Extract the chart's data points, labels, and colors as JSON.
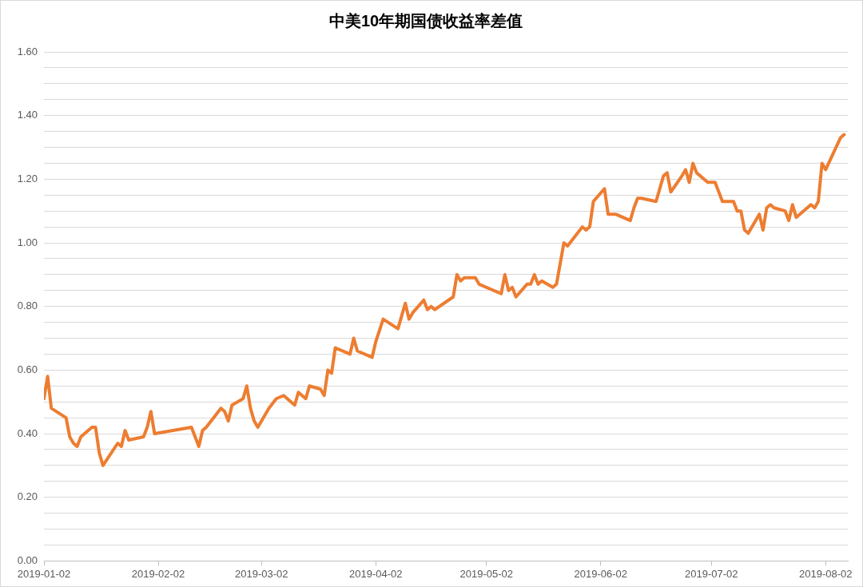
{
  "chart_data": {
    "type": "line",
    "title": "中美10年期国债收益率差值",
    "x": [
      "2019-01-02",
      "2019-01-03",
      "2019-01-04",
      "2019-01-08",
      "2019-01-09",
      "2019-01-10",
      "2019-01-11",
      "2019-01-12",
      "2019-01-15",
      "2019-01-16",
      "2019-01-17",
      "2019-01-18",
      "2019-01-22",
      "2019-01-23",
      "2019-01-24",
      "2019-01-25",
      "2019-01-29",
      "2019-01-30",
      "2019-01-31",
      "2019-02-01",
      "2019-02-11",
      "2019-02-12",
      "2019-02-13",
      "2019-02-14",
      "2019-02-15",
      "2019-02-19",
      "2019-02-20",
      "2019-02-21",
      "2019-02-22",
      "2019-02-25",
      "2019-02-26",
      "2019-02-27",
      "2019-02-28",
      "2019-03-01",
      "2019-03-04",
      "2019-03-06",
      "2019-03-08",
      "2019-03-11",
      "2019-03-12",
      "2019-03-14",
      "2019-03-15",
      "2019-03-18",
      "2019-03-19",
      "2019-03-20",
      "2019-03-21",
      "2019-03-22",
      "2019-03-26",
      "2019-03-27",
      "2019-03-28",
      "2019-04-01",
      "2019-04-02",
      "2019-04-04",
      "2019-04-08",
      "2019-04-09",
      "2019-04-10",
      "2019-04-11",
      "2019-04-12",
      "2019-04-15",
      "2019-04-16",
      "2019-04-17",
      "2019-04-18",
      "2019-04-23",
      "2019-04-24",
      "2019-04-25",
      "2019-04-26",
      "2019-04-29",
      "2019-04-30",
      "2019-05-06",
      "2019-05-07",
      "2019-05-08",
      "2019-05-09",
      "2019-05-10",
      "2019-05-13",
      "2019-05-14",
      "2019-05-15",
      "2019-05-16",
      "2019-05-17",
      "2019-05-20",
      "2019-05-21",
      "2019-05-23",
      "2019-05-24",
      "2019-05-28",
      "2019-05-29",
      "2019-05-30",
      "2019-05-31",
      "2019-06-03",
      "2019-06-04",
      "2019-06-06",
      "2019-06-10",
      "2019-06-11",
      "2019-06-12",
      "2019-06-13",
      "2019-06-17",
      "2019-06-19",
      "2019-06-20",
      "2019-06-21",
      "2019-06-24",
      "2019-06-25",
      "2019-06-26",
      "2019-06-27",
      "2019-06-28",
      "2019-07-01",
      "2019-07-03",
      "2019-07-05",
      "2019-07-08",
      "2019-07-09",
      "2019-07-10",
      "2019-07-11",
      "2019-07-12",
      "2019-07-15",
      "2019-07-16",
      "2019-07-17",
      "2019-07-18",
      "2019-07-19",
      "2019-07-22",
      "2019-07-23",
      "2019-07-24",
      "2019-07-25",
      "2019-07-26",
      "2019-07-29",
      "2019-07-30",
      "2019-07-31",
      "2019-08-01",
      "2019-08-02",
      "2019-08-06",
      "2019-08-07"
    ],
    "series": [
      {
        "color": "#ed7d31",
        "values": [
          0.51,
          0.58,
          0.48,
          0.45,
          0.39,
          0.37,
          0.36,
          0.39,
          0.42,
          0.42,
          0.34,
          0.3,
          0.37,
          0.36,
          0.41,
          0.38,
          0.39,
          0.42,
          0.47,
          0.4,
          0.42,
          0.39,
          0.36,
          0.41,
          0.42,
          0.48,
          0.47,
          0.44,
          0.49,
          0.51,
          0.55,
          0.48,
          0.44,
          0.42,
          0.48,
          0.51,
          0.52,
          0.49,
          0.53,
          0.51,
          0.55,
          0.54,
          0.52,
          0.6,
          0.59,
          0.67,
          0.65,
          0.7,
          0.66,
          0.64,
          0.69,
          0.76,
          0.73,
          0.77,
          0.81,
          0.76,
          0.78,
          0.82,
          0.79,
          0.8,
          0.79,
          0.83,
          0.9,
          0.88,
          0.89,
          0.89,
          0.87,
          0.84,
          0.9,
          0.85,
          0.86,
          0.83,
          0.87,
          0.87,
          0.9,
          0.87,
          0.88,
          0.86,
          0.87,
          1.0,
          0.99,
          1.05,
          1.04,
          1.05,
          1.13,
          1.17,
          1.09,
          1.09,
          1.07,
          1.11,
          1.14,
          1.14,
          1.13,
          1.21,
          1.22,
          1.16,
          1.21,
          1.23,
          1.19,
          1.25,
          1.22,
          1.19,
          1.19,
          1.13,
          1.13,
          1.1,
          1.1,
          1.04,
          1.03,
          1.09,
          1.04,
          1.11,
          1.12,
          1.11,
          1.1,
          1.07,
          1.12,
          1.08,
          1.09,
          1.12,
          1.11,
          1.13,
          1.25,
          1.23,
          1.33,
          1.34
        ]
      }
    ],
    "xlim": [
      "2019-01-02",
      "2019-08-08"
    ],
    "xticks": [
      "2019-01-02",
      "2019-02-02",
      "2019-03-02",
      "2019-04-02",
      "2019-05-02",
      "2019-06-02",
      "2019-07-02",
      "2019-08-02"
    ],
    "ylim": [
      0,
      1.6
    ],
    "yticks": [
      {
        "value": 0,
        "label": "0.00"
      },
      {
        "value": 0.05,
        "label": null
      },
      {
        "value": 0.1,
        "label": null
      },
      {
        "value": 0.15,
        "label": null
      },
      {
        "value": 0.2,
        "label": "0.20"
      },
      {
        "value": 0.25,
        "label": null
      },
      {
        "value": 0.3,
        "label": null
      },
      {
        "value": 0.35,
        "label": null
      },
      {
        "value": 0.4,
        "label": "0.40"
      },
      {
        "value": 0.45,
        "label": null
      },
      {
        "value": 0.5,
        "label": null
      },
      {
        "value": 0.55,
        "label": null
      },
      {
        "value": 0.6,
        "label": "0.60"
      },
      {
        "value": 0.65,
        "label": null
      },
      {
        "value": 0.7,
        "label": null
      },
      {
        "value": 0.75,
        "label": null
      },
      {
        "value": 0.8,
        "label": "0.80"
      },
      {
        "value": 0.85,
        "label": null
      },
      {
        "value": 0.9,
        "label": null
      },
      {
        "value": 0.95,
        "label": null
      },
      {
        "value": 1.0,
        "label": "1.00"
      },
      {
        "value": 1.05,
        "label": null
      },
      {
        "value": 1.1,
        "label": null
      },
      {
        "value": 1.15,
        "label": null
      },
      {
        "value": 1.2,
        "label": "1.20"
      },
      {
        "value": 1.25,
        "label": null
      },
      {
        "value": 1.3,
        "label": null
      },
      {
        "value": 1.35,
        "label": null
      },
      {
        "value": 1.4,
        "label": "1.40"
      },
      {
        "value": 1.45,
        "label": null
      },
      {
        "value": 1.5,
        "label": null
      },
      {
        "value": 1.55,
        "label": null
      },
      {
        "value": 1.6,
        "label": "1.60"
      }
    ],
    "grid": "y",
    "legend": false,
    "marker": "none",
    "line_style": "solid"
  }
}
